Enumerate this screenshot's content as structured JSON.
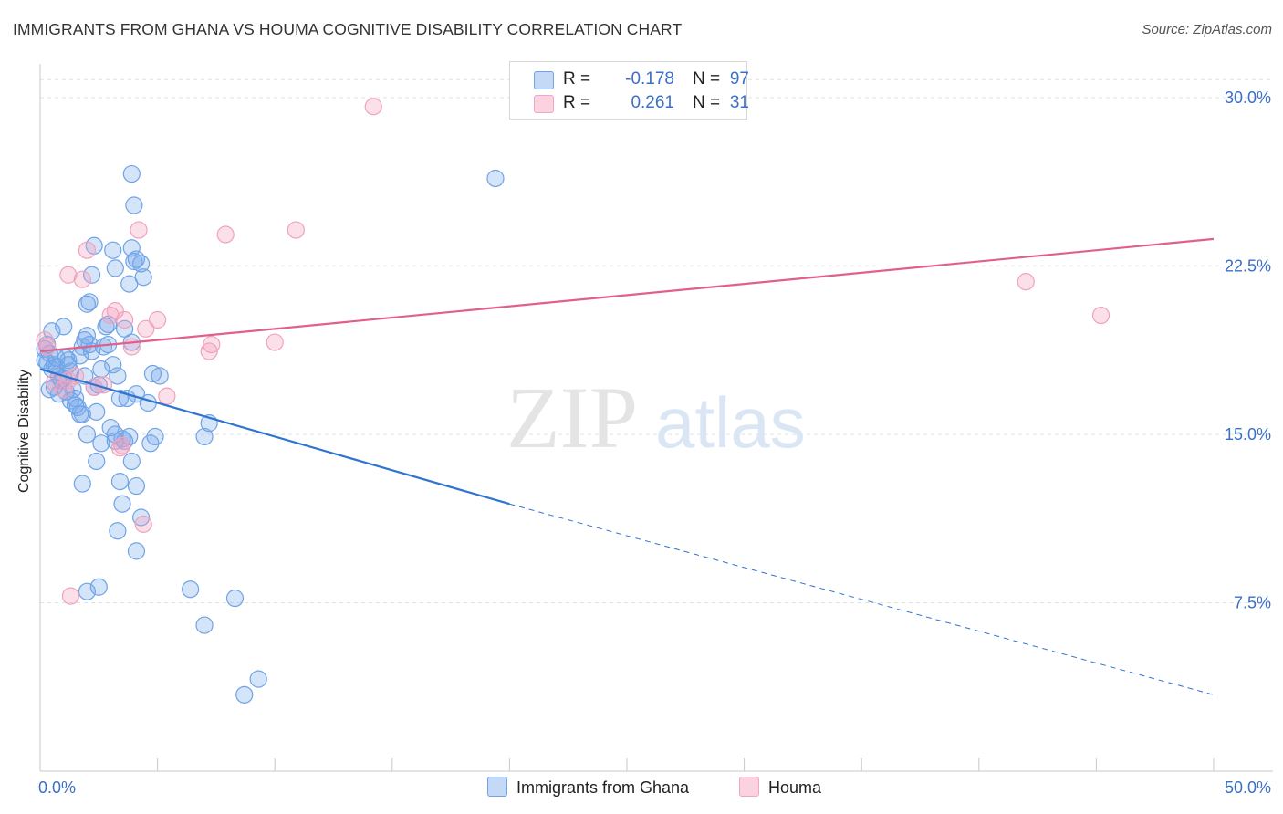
{
  "title": "IMMIGRANTS FROM GHANA VS HOUMA COGNITIVE DISABILITY CORRELATION CHART",
  "source": "Source: ZipAtlas.com",
  "watermark": {
    "zip": "ZIP",
    "atlas": "atlas"
  },
  "legend": {
    "rows": [
      {
        "r_label": "R =",
        "r_value": "-0.178",
        "n_label": "N =",
        "n_value": "97",
        "color": "#a8c8f0"
      },
      {
        "r_label": "R =",
        "r_value": "0.261",
        "n_label": "N =",
        "n_value": "31",
        "color": "#f4b8cc"
      }
    ]
  },
  "chart_data": {
    "type": "scatter",
    "title": "IMMIGRANTS FROM GHANA VS HOUMA COGNITIVE DISABILITY CORRELATION CHART",
    "xlabel": "",
    "ylabel": "Cognitive Disability",
    "xlim": [
      0,
      50
    ],
    "ylim": [
      0,
      31.5
    ],
    "x_tick_labels": [
      "0.0%",
      "50.0%"
    ],
    "y_ticks": [
      7.5,
      15.0,
      22.5,
      30.0
    ],
    "y_tick_labels": [
      "7.5%",
      "15.0%",
      "22.5%",
      "30.0%"
    ],
    "grid": true,
    "series": [
      {
        "name": "Immigrants from Ghana",
        "color": "#6fa3e6",
        "line_color": "#2f74d0",
        "trend": {
          "x0": 0,
          "y0": 17.9,
          "x1": 20,
          "y1": 11.9,
          "dashed_to_x": 50,
          "dashed_to_y": 3.4
        },
        "points": [
          [
            0.2,
            18.8
          ],
          [
            0.3,
            18.2
          ],
          [
            0.4,
            18.6
          ],
          [
            0.5,
            17.9
          ],
          [
            0.6,
            18.1
          ],
          [
            0.7,
            18.0
          ],
          [
            0.8,
            17.6
          ],
          [
            0.5,
            19.6
          ],
          [
            0.3,
            19.0
          ],
          [
            0.9,
            17.4
          ],
          [
            1.0,
            19.8
          ],
          [
            1.1,
            18.4
          ],
          [
            1.2,
            18.3
          ],
          [
            1.3,
            17.8
          ],
          [
            1.4,
            17.0
          ],
          [
            1.5,
            16.6
          ],
          [
            0.6,
            17.1
          ],
          [
            1.1,
            16.9
          ],
          [
            1.3,
            16.5
          ],
          [
            1.6,
            16.2
          ],
          [
            1.7,
            18.5
          ],
          [
            1.8,
            18.9
          ],
          [
            1.9,
            19.2
          ],
          [
            2.0,
            19.4
          ],
          [
            2.1,
            19.0
          ],
          [
            2.2,
            18.7
          ],
          [
            1.9,
            17.6
          ],
          [
            2.3,
            17.1
          ],
          [
            2.5,
            17.2
          ],
          [
            2.4,
            16.0
          ],
          [
            1.8,
            15.9
          ],
          [
            2.7,
            18.9
          ],
          [
            2.8,
            19.8
          ],
          [
            2.9,
            19.0
          ],
          [
            3.1,
            18.1
          ],
          [
            3.3,
            17.6
          ],
          [
            3.4,
            16.6
          ],
          [
            3.0,
            15.3
          ],
          [
            3.2,
            15.0
          ],
          [
            2.6,
            14.6
          ],
          [
            3.6,
            14.7
          ],
          [
            3.5,
            14.8
          ],
          [
            3.8,
            14.9
          ],
          [
            3.2,
            14.7
          ],
          [
            2.0,
            15.0
          ],
          [
            1.7,
            15.9
          ],
          [
            2.4,
            13.8
          ],
          [
            3.4,
            12.9
          ],
          [
            1.8,
            12.8
          ],
          [
            3.5,
            11.9
          ],
          [
            3.9,
            13.8
          ],
          [
            4.1,
            12.7
          ],
          [
            4.3,
            11.3
          ],
          [
            3.3,
            10.7
          ],
          [
            4.1,
            9.8
          ],
          [
            2.0,
            8.0
          ],
          [
            2.5,
            8.2
          ],
          [
            4.7,
            14.6
          ],
          [
            4.9,
            14.9
          ],
          [
            4.6,
            16.4
          ],
          [
            4.1,
            16.8
          ],
          [
            3.7,
            16.6
          ],
          [
            4.8,
            17.7
          ],
          [
            5.1,
            17.6
          ],
          [
            3.9,
            19.1
          ],
          [
            3.6,
            19.7
          ],
          [
            2.9,
            19.9
          ],
          [
            2.0,
            20.8
          ],
          [
            2.1,
            20.9
          ],
          [
            2.2,
            22.1
          ],
          [
            2.3,
            23.4
          ],
          [
            3.1,
            23.2
          ],
          [
            3.2,
            22.4
          ],
          [
            3.8,
            21.7
          ],
          [
            3.9,
            23.3
          ],
          [
            4.0,
            22.7
          ],
          [
            4.1,
            22.8
          ],
          [
            4.3,
            22.6
          ],
          [
            4.4,
            22.0
          ],
          [
            4.0,
            25.2
          ],
          [
            3.9,
            26.6
          ],
          [
            19.4,
            26.4
          ],
          [
            7.0,
            14.9
          ],
          [
            7.2,
            15.5
          ],
          [
            6.4,
            8.1
          ],
          [
            8.3,
            7.7
          ],
          [
            7.0,
            6.5
          ],
          [
            9.3,
            4.1
          ],
          [
            8.7,
            3.4
          ],
          [
            0.4,
            17.0
          ],
          [
            0.8,
            16.8
          ],
          [
            1.0,
            17.5
          ],
          [
            1.5,
            16.3
          ],
          [
            2.6,
            17.9
          ],
          [
            0.2,
            18.3
          ],
          [
            0.7,
            18.4
          ],
          [
            1.2,
            18.1
          ]
        ]
      },
      {
        "name": "Houma",
        "color": "#f2a6bf",
        "line_color": "#e0608a",
        "trend": {
          "x0": 0,
          "y0": 18.7,
          "x1": 50,
          "y1": 23.7
        },
        "points": [
          [
            0.2,
            19.2
          ],
          [
            0.3,
            18.9
          ],
          [
            1.2,
            17.4
          ],
          [
            1.5,
            17.6
          ],
          [
            1.0,
            17.0
          ],
          [
            2.3,
            17.1
          ],
          [
            2.7,
            17.2
          ],
          [
            3.0,
            20.3
          ],
          [
            3.2,
            20.5
          ],
          [
            3.6,
            20.1
          ],
          [
            3.9,
            18.9
          ],
          [
            4.5,
            19.7
          ],
          [
            5.0,
            20.1
          ],
          [
            5.4,
            16.7
          ],
          [
            3.4,
            14.4
          ],
          [
            3.5,
            14.5
          ],
          [
            4.4,
            11.0
          ],
          [
            1.3,
            7.8
          ],
          [
            1.2,
            22.1
          ],
          [
            1.8,
            21.9
          ],
          [
            2.0,
            23.2
          ],
          [
            4.2,
            24.1
          ],
          [
            7.9,
            23.9
          ],
          [
            10.9,
            24.1
          ],
          [
            14.2,
            29.6
          ],
          [
            7.2,
            18.7
          ],
          [
            7.3,
            19.0
          ],
          [
            10.0,
            19.1
          ],
          [
            42.0,
            21.8
          ],
          [
            45.2,
            20.3
          ],
          [
            0.6,
            17.3
          ]
        ]
      }
    ]
  },
  "bottom_legend": {
    "labels": [
      "Immigrants from Ghana",
      "Houma"
    ]
  }
}
